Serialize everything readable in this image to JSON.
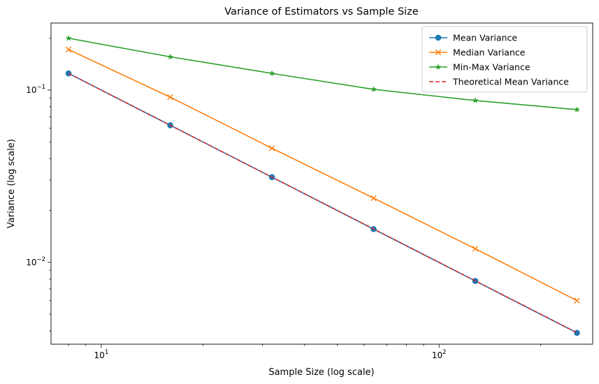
{
  "chart_data": {
    "type": "line",
    "title": "Variance of Estimators vs Sample Size",
    "xlabel": "Sample Size (log scale)",
    "ylabel": "Variance (log scale)",
    "xscale": "log",
    "yscale": "log",
    "xlim": [
      7.1,
      285
    ],
    "ylim": [
      0.00335,
      0.245
    ],
    "xticks": [
      {
        "value": 10,
        "base": "10",
        "exp": "1"
      },
      {
        "value": 100,
        "base": "10",
        "exp": "2"
      }
    ],
    "yticks": [
      {
        "value": 0.01,
        "base": "10",
        "exp": "−2"
      },
      {
        "value": 0.1,
        "base": "10",
        "exp": "−1"
      }
    ],
    "grid": false,
    "legend": "top-right",
    "x": [
      8,
      16,
      32,
      64,
      128,
      256
    ],
    "series": [
      {
        "name": "Mean Variance",
        "color": "#1f77b4",
        "marker": "circle",
        "dash": "solid",
        "values": [
          0.125,
          0.0625,
          0.03125,
          0.0156,
          0.0078,
          0.0039
        ]
      },
      {
        "name": "Median Variance",
        "color": "#ff7f0e",
        "marker": "x",
        "dash": "solid",
        "values": [
          0.172,
          0.091,
          0.046,
          0.0236,
          0.012,
          0.006
        ]
      },
      {
        "name": "Min-Max Variance",
        "color": "#2ca02c",
        "marker": "star",
        "dash": "solid",
        "values": [
          0.2,
          0.156,
          0.125,
          0.101,
          0.087,
          0.077
        ]
      },
      {
        "name": "Theoretical Mean Variance",
        "color": "#d62728",
        "marker": "none",
        "dash": "dashed",
        "values": [
          0.125,
          0.0625,
          0.03125,
          0.015625,
          0.0078125,
          0.00390625
        ]
      }
    ]
  }
}
